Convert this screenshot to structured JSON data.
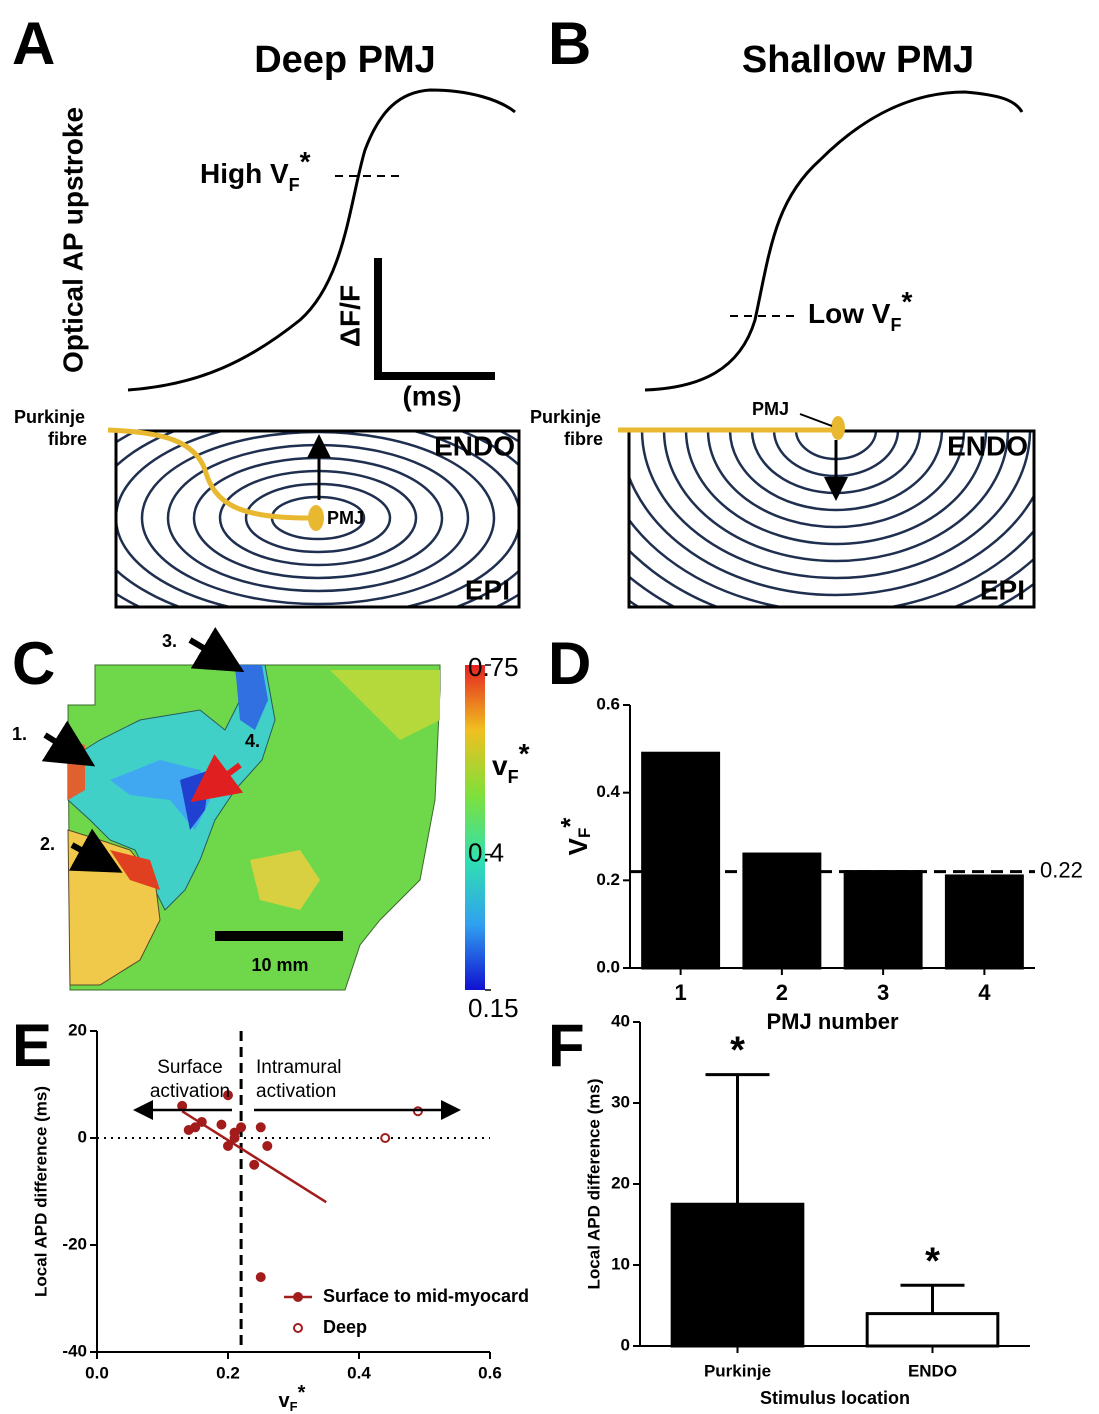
{
  "panels": {
    "A": {
      "label": "A",
      "title": "Deep PMJ",
      "y_label": "Optical AP upstroke",
      "marker": [
        "High V",
        "F",
        "*"
      ],
      "scale_y": "ΔF/F",
      "scale_x": "(ms)",
      "fibre": [
        "Purkinje",
        "fibre"
      ],
      "pmj": "PMJ",
      "endo": "ENDO",
      "epi": "EPI"
    },
    "B": {
      "label": "B",
      "title": "Shallow PMJ",
      "marker": [
        "Low V",
        "F",
        "*"
      ],
      "fibre": [
        "Purkinje",
        "fibre"
      ],
      "pmj": "PMJ",
      "endo": "ENDO",
      "epi": "EPI"
    },
    "C": {
      "label": "C",
      "arrows": [
        "1.",
        "2.",
        "3.",
        "4."
      ],
      "scale_bar": "10 mm",
      "colorbar_label": [
        "v",
        "F",
        "*"
      ],
      "colorbar_ticks": [
        0.75,
        0.4,
        0.15
      ]
    }
  },
  "chart_data": [
    {
      "panel": "D",
      "type": "bar",
      "categories": [
        "1",
        "2",
        "3",
        "4"
      ],
      "values": [
        0.49,
        0.26,
        0.22,
        0.21
      ],
      "color": "#000000",
      "ylim": [
        0,
        0.6
      ],
      "yticks": [
        {
          "value": 0,
          "label": "0.0"
        },
        0.2,
        0.4,
        0.6
      ],
      "y_label": [
        "V",
        "F",
        "*"
      ],
      "x_label": "PMJ number",
      "reference_line": 0.22
    },
    {
      "panel": "E",
      "type": "scatter",
      "xlim": [
        0,
        0.6
      ],
      "ylim": [
        -40,
        20
      ],
      "xticks": [
        {
          "value": 0,
          "label": "0.0"
        },
        0.2,
        0.4,
        0.6
      ],
      "yticks": [
        -40,
        -20,
        0,
        20
      ],
      "x_label": [
        "v",
        "F",
        "*"
      ],
      "y_label": "Local APD difference (ms)",
      "series": [
        {
          "name": "Surface to mid-myocard",
          "color": "#a31c1c",
          "filled": true,
          "x": [
            0.13,
            0.14,
            0.15,
            0.16,
            0.19,
            0.2,
            0.21,
            0.2,
            0.22,
            0.21,
            0.25,
            0.26,
            0.24,
            0.25
          ],
          "y": [
            6,
            1.5,
            2,
            3,
            2.5,
            8,
            1,
            -1.5,
            2,
            0,
            2,
            -1.5,
            -5,
            -26
          ]
        },
        {
          "name": "Deep",
          "color": "#a31c1c",
          "filled": false,
          "x": [
            0.44,
            0.49
          ],
          "y": [
            0,
            5
          ]
        }
      ],
      "trend": {
        "x": [
          0.13,
          0.35
        ],
        "y": [
          5,
          -12
        ]
      },
      "reference_lines": {
        "x": 0.22,
        "y": 0
      },
      "annotations": {
        "left": [
          "Surface",
          "activation"
        ],
        "right": [
          "Intramural",
          "activation"
        ]
      }
    },
    {
      "panel": "F",
      "type": "bar",
      "categories": [
        "Purkinje",
        "ENDO"
      ],
      "values": [
        17.5,
        4
      ],
      "errors": [
        16,
        3.5
      ],
      "colors": [
        "#000000",
        "#ffffff"
      ],
      "value_annotations": [
        "*",
        "*"
      ],
      "ylim": [
        0,
        40
      ],
      "yticks": [
        0,
        10,
        20,
        30,
        40
      ],
      "y_label": "Local APD difference (ms)",
      "x_label": "Stimulus location"
    }
  ]
}
